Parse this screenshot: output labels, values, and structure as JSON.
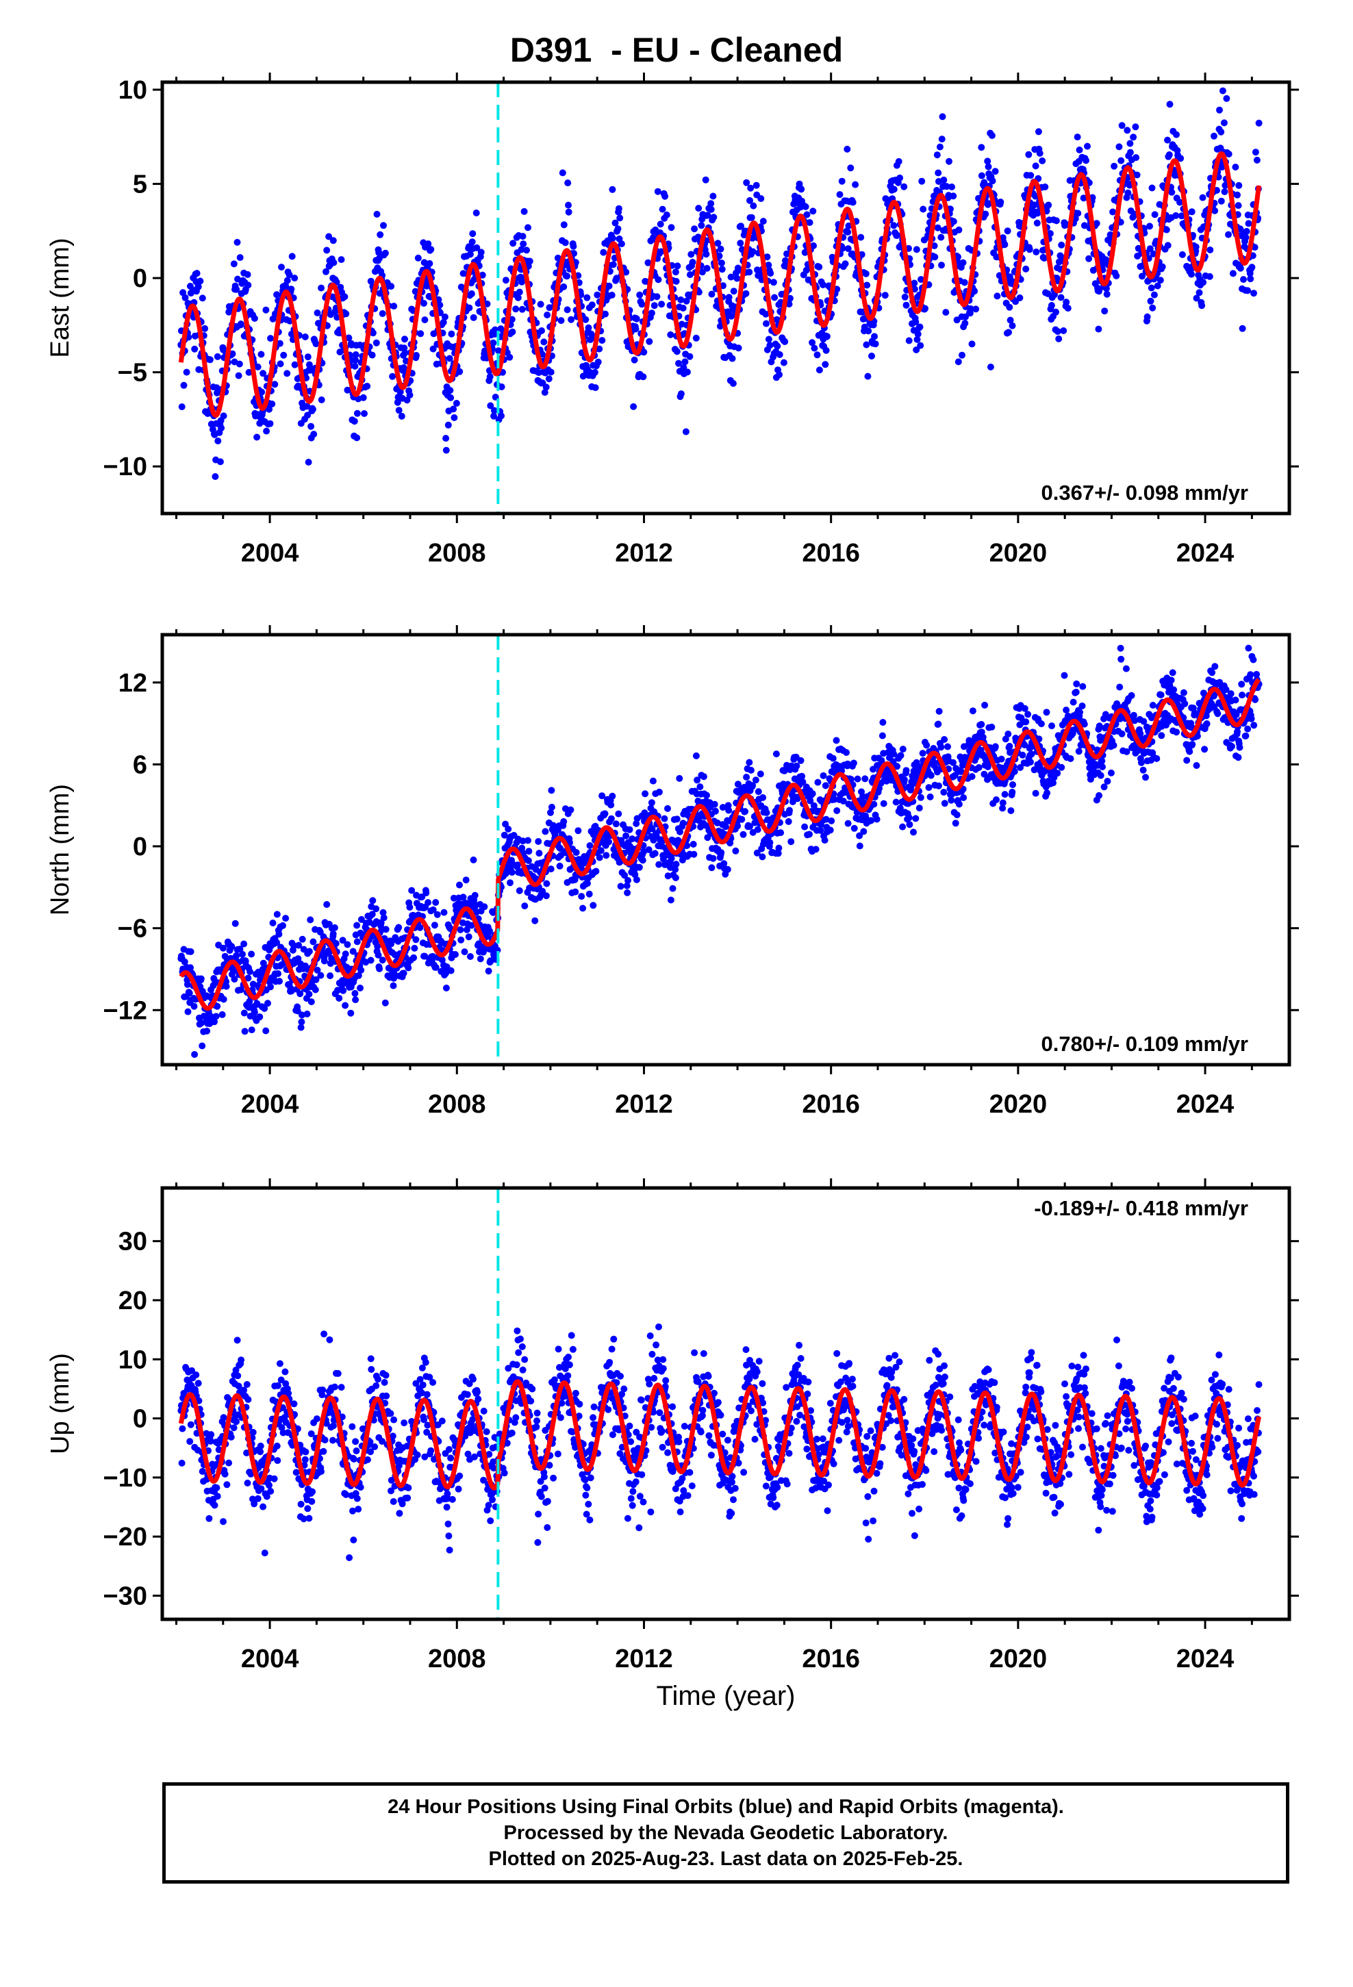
{
  "title": "D391  - EU - Cleaned",
  "colors": {
    "data": "#0000ff",
    "model": "#ff0000",
    "offset": "#00e5e5",
    "frame": "#000000"
  },
  "offset_epoch": 2008.88,
  "xlabel": "Time (year)",
  "footer": {
    "line1": "24 Hour Positions Using Final Orbits (blue) and Rapid Orbits (magenta).",
    "line2": "Processed by the Nevada Geodetic Laboratory.",
    "line3": "Plotted on 2025-Aug-23. Last data on 2025-Feb-25."
  },
  "chart_data": [
    {
      "type": "scatter",
      "ylabel": "East (mm)",
      "xlim": [
        2001.7,
        2025.8
      ],
      "ylim": [
        -12.5,
        10.4
      ],
      "yticks": [
        10,
        5,
        0,
        -5,
        -10
      ],
      "xticks": [
        2004,
        2008,
        2012,
        2016,
        2020,
        2024
      ],
      "xtick_labels": [
        "2004",
        "2008",
        "2012",
        "2016",
        "2020",
        "2024"
      ],
      "rate_label": "0.367+/- 0.098 mm/yr",
      "rate_position": "bottom-right",
      "model": {
        "y0": -4.6,
        "slope": 0.367,
        "amplitude": 3.0,
        "phase": -0.6,
        "offset": 0
      },
      "scatter_sigma": 1.4,
      "data_range": [
        2002.1,
        2025.15
      ]
    },
    {
      "type": "scatter",
      "ylabel": "North (mm)",
      "xlim": [
        2001.7,
        2025.8
      ],
      "ylim": [
        -16,
        15.5
      ],
      "yticks": [
        12,
        6,
        0,
        -6,
        -12
      ],
      "xticks": [
        2004,
        2008,
        2012,
        2016,
        2020,
        2024
      ],
      "xtick_labels": [
        "2004",
        "2008",
        "2012",
        "2016",
        "2020",
        "2024"
      ],
      "rate_label": "0.780+/- 0.109 mm/yr",
      "rate_position": "bottom-right",
      "model": {
        "y0": -10.9,
        "slope": 0.78,
        "amplitude": 1.5,
        "phase": 0.4,
        "offset": 3.6
      },
      "scatter_sigma": 1.3,
      "data_range": [
        2002.1,
        2025.15
      ]
    },
    {
      "type": "scatter",
      "ylabel": "Up (mm)",
      "xlim": [
        2001.7,
        2025.8
      ],
      "ylim": [
        -34,
        39
      ],
      "yticks": [
        30,
        20,
        10,
        0,
        -10,
        -20,
        -30
      ],
      "xticks": [
        2004,
        2008,
        2012,
        2016,
        2020,
        2024
      ],
      "xtick_labels": [
        "2004",
        "2008",
        "2012",
        "2016",
        "2020",
        "2024"
      ],
      "rate_label": "-0.189+/- 0.418 mm/yr",
      "rate_position": "top-right",
      "model": {
        "y0": -3.2,
        "slope": -0.189,
        "amplitude": 7.3,
        "phase": -0.3,
        "offset": 3.5
      },
      "scatter_sigma": 3.8,
      "data_range": [
        2002.1,
        2025.15
      ]
    }
  ]
}
